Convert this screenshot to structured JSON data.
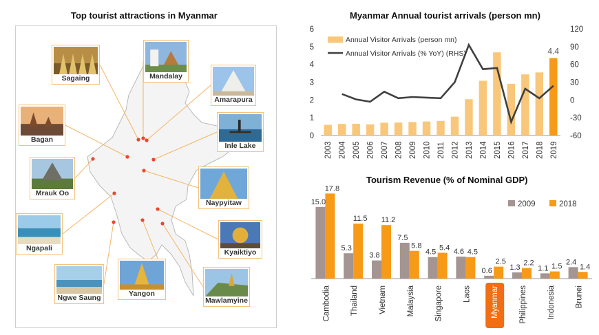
{
  "map": {
    "title": "Top tourist attractions in Myanmar",
    "places": [
      {
        "name": "Sagaing",
        "photo": "pagodas-and-buddha-statues"
      },
      {
        "name": "Mandalay",
        "photo": "white-lion-statue-and-palace"
      },
      {
        "name": "Amarapura",
        "photo": "white-temple"
      },
      {
        "name": "Bagan",
        "photo": "temples-at-sunset"
      },
      {
        "name": "Inle Lake",
        "photo": "fisherman-on-lake"
      },
      {
        "name": "Mrauk Oo",
        "photo": "stone-temples"
      },
      {
        "name": "Naypyitaw",
        "photo": "golden-pagoda"
      },
      {
        "name": "Ngapali",
        "photo": "beach-with-boats"
      },
      {
        "name": "Kyaiktiyo",
        "photo": "golden-rock"
      },
      {
        "name": "Ngwe Saung",
        "photo": "beach-at-sunset"
      },
      {
        "name": "Yangon",
        "photo": "shwedagon-pagoda"
      },
      {
        "name": "Mawlamyine",
        "photo": "pagoda-on-hill"
      }
    ]
  },
  "chart_data": [
    {
      "type": "bar+line",
      "title": "Myanmar Annual tourist arrivals (person mn)",
      "categories": [
        "2003",
        "2004",
        "2005",
        "2006",
        "2007",
        "2008",
        "2009",
        "2010",
        "2011",
        "2012",
        "2013",
        "2014",
        "2015",
        "2016",
        "2017",
        "2018",
        "2019"
      ],
      "series": [
        {
          "name": "Annual Visitor Arrivals (person mn)",
          "type": "bar",
          "axis": "left",
          "color": "#f9c77a",
          "highlight_color": "#f79a17",
          "values": [
            0.6,
            0.65,
            0.66,
            0.63,
            0.72,
            0.73,
            0.76,
            0.79,
            0.82,
            1.06,
            2.04,
            3.08,
            4.68,
            2.91,
            3.44,
            3.55,
            4.36
          ]
        },
        {
          "name": "Annual Visitor Arrivals (% YoY) (RHS)",
          "type": "line",
          "axis": "right",
          "color": "#404040",
          "values": [
            null,
            10,
            1,
            -3,
            14,
            3,
            5,
            4,
            3,
            30,
            93,
            52,
            54,
            -37,
            19,
            3,
            24
          ]
        }
      ],
      "data_labels": [
        {
          "category": "2019",
          "text": "4.4"
        }
      ],
      "ylim_left": [
        0,
        6
      ],
      "yticks_left": [
        "0",
        "1",
        "2",
        "3",
        "4",
        "5",
        "6"
      ],
      "ylim_right": [
        -60,
        120
      ],
      "yticks_right": [
        "-60",
        "-30",
        "0",
        "30",
        "60",
        "90",
        "120"
      ],
      "legend": "top-left"
    },
    {
      "type": "bar",
      "title": "Tourism Revenue (% of Nominal GDP)",
      "categories": [
        "Cambodia",
        "Thailand",
        "Vietnam",
        "Malaysia",
        "Singapore",
        "Laos",
        "Myanmar",
        "Philippines",
        "Indonesia",
        "Brunei"
      ],
      "highlight_category": "Myanmar",
      "series": [
        {
          "name": "2009",
          "color": "#a59592",
          "values": [
            15.0,
            5.3,
            3.8,
            7.5,
            4.5,
            4.6,
            0.6,
            1.3,
            1.1,
            2.4
          ],
          "labels": [
            "15.0",
            "5.3",
            "3.8",
            "7.5",
            "4.5",
            "4.6",
            "0.6",
            "1.3",
            "1.1",
            "2.4"
          ]
        },
        {
          "name": "2018",
          "color": "#f79a17",
          "values": [
            17.8,
            11.5,
            11.2,
            5.8,
            5.4,
            4.5,
            2.5,
            2.2,
            1.5,
            1.4
          ],
          "labels": [
            "17.8",
            "11.5",
            "11.2",
            "5.8",
            "5.4",
            "4.5",
            "2.5",
            "2.2",
            "1.5",
            "1.4"
          ]
        }
      ],
      "ylim": [
        0,
        19
      ],
      "legend": "top-right"
    }
  ]
}
